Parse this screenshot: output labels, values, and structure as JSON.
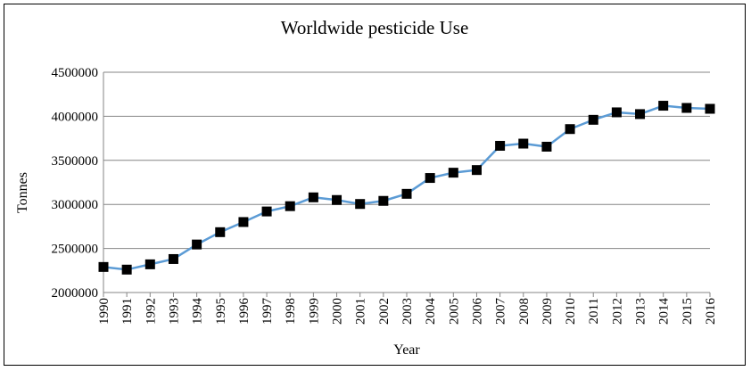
{
  "chart_data": {
    "type": "line",
    "title": "Worldwide pesticide Use",
    "xlabel": "Year",
    "ylabel": "Tonnes",
    "ylim": [
      2000000,
      4500000
    ],
    "yticks": [
      "2000000",
      "2500000",
      "3000000",
      "3500000",
      "4000000",
      "4500000"
    ],
    "grid": "horizontal",
    "legend": "none",
    "x": [
      "1990",
      "1991",
      "1992",
      "1993",
      "1994",
      "1995",
      "1996",
      "1997",
      "1998",
      "1999",
      "2000",
      "2001",
      "2002",
      "2003",
      "2004",
      "2005",
      "2006",
      "2007",
      "2008",
      "2009",
      "2010",
      "2011",
      "2012",
      "2013",
      "2014",
      "2015",
      "2016"
    ],
    "series": [
      {
        "values": [
          2290000,
          2260000,
          2320000,
          2380000,
          2545000,
          2685000,
          2800000,
          2920000,
          2980000,
          3080000,
          3050000,
          3005000,
          3040000,
          3120000,
          3300000,
          3360000,
          3390000,
          3665000,
          3690000,
          3655000,
          3855000,
          3960000,
          4045000,
          4025000,
          4120000,
          4095000,
          4085000
        ],
        "line_color": "#5b9bd5",
        "marker_color": "#000000"
      }
    ]
  }
}
